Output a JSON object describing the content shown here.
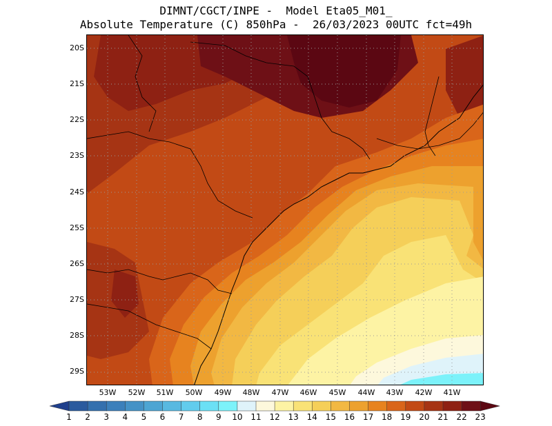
{
  "title": {
    "line1": "DIMNT/CGCT/INPE -  Model Eta05_M01_",
    "line2": "Absolute Temperature (C) 850hPa -  26/03/2023 00UTC fct=49h"
  },
  "map": {
    "latitude_labels": [
      "20S",
      "21S",
      "22S",
      "23S",
      "24S",
      "25S",
      "26S",
      "27S",
      "28S",
      "29S"
    ],
    "longitude_labels": [
      "53W",
      "52W",
      "51W",
      "50W",
      "49W",
      "48W",
      "47W",
      "46W",
      "45W",
      "44W",
      "43W",
      "42W",
      "41W"
    ]
  },
  "colorbar": {
    "labels": [
      "1",
      "2",
      "3",
      "4",
      "5",
      "6",
      "7",
      "8",
      "9",
      "10",
      "11",
      "12",
      "13",
      "14",
      "15",
      "16",
      "17",
      "18",
      "19",
      "20",
      "21",
      "22",
      "23"
    ],
    "colors": [
      "#1f3f8c",
      "#2a5a9e",
      "#3470ae",
      "#3c80bb",
      "#4592c6",
      "#4da5d3",
      "#58b9e1",
      "#62cced",
      "#6be0f5",
      "#7cf2fa",
      "#dff3fa",
      "#fdf8dc",
      "#fdf3a4",
      "#f9e276",
      "#f5cf59",
      "#f2b843",
      "#eda12e",
      "#e7831f",
      "#d9651a",
      "#c24a15",
      "#a63414",
      "#8e2113",
      "#6e1016",
      "#5b0712"
    ]
  },
  "colors": {
    "t11": "#dff3fa",
    "t12": "#fdf8dc",
    "t13": "#fdf3a4",
    "t14": "#f9e276",
    "t15": "#f5cf59",
    "t16": "#f2b843",
    "t17": "#eda12e",
    "t18": "#e7831f",
    "t19": "#d9651a",
    "t20": "#c24a15",
    "t21": "#a63414",
    "t22": "#8e2113",
    "t23": "#6e1016",
    "t24": "#5b0712",
    "t10": "#7cf2fa"
  }
}
